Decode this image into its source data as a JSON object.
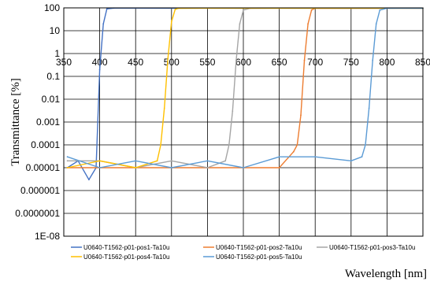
{
  "chart_data": {
    "type": "line",
    "title": "",
    "xlabel": "Wavelength [nm]",
    "ylabel": "Transmittance [%]",
    "xlim": [
      350,
      850
    ],
    "ylim": [
      1e-08,
      100
    ],
    "yscale": "log",
    "grid": true,
    "legend_position": "bottom",
    "x_ticks": [
      350,
      400,
      450,
      500,
      550,
      600,
      650,
      700,
      750,
      800,
      850
    ],
    "y_tick_labels": [
      "100",
      "10",
      "1",
      "0.1",
      "0.01",
      "0.001",
      "0.0001",
      "0.00001",
      "0.000001",
      "0.0000001",
      "1E-08"
    ],
    "series": [
      {
        "name": "U0640-T1562-p01-pos1-Ta10u",
        "color": "#4472c4",
        "x": [
          355,
          370,
          385,
          395,
          400,
          405,
          410,
          420,
          450,
          500,
          550,
          600,
          650,
          700,
          750,
          800,
          850
        ],
        "y": [
          1e-05,
          2e-05,
          3e-06,
          1e-05,
          0.2,
          20,
          90,
          98,
          98,
          97,
          98,
          97,
          98,
          98,
          97,
          98,
          97
        ]
      },
      {
        "name": "U0640-T1562-p01-pos2-Ta10u",
        "color": "#ed7d31",
        "x": [
          355,
          400,
          450,
          500,
          550,
          600,
          650,
          670,
          675,
          680,
          685,
          690,
          695,
          700,
          750,
          800,
          850
        ],
        "y": [
          1e-05,
          1e-05,
          1e-05,
          1e-05,
          1e-05,
          1e-05,
          1e-05,
          5e-05,
          0.0001,
          0.002,
          0.5,
          20,
          80,
          96,
          97,
          97,
          97
        ]
      },
      {
        "name": "U0640-T1562-p01-pos3-Ta10u",
        "color": "#a5a5a5",
        "x": [
          355,
          400,
          450,
          500,
          550,
          575,
          580,
          585,
          590,
          595,
          600,
          610,
          650,
          700,
          750,
          800,
          850
        ],
        "y": [
          2e-05,
          2e-05,
          1e-05,
          2e-05,
          1e-05,
          2e-05,
          0.0001,
          0.003,
          0.5,
          20,
          80,
          96,
          97,
          97,
          97,
          97,
          97
        ]
      },
      {
        "name": "U0640-T1562-p01-pos4-Ta10u",
        "color": "#ffc000",
        "x": [
          355,
          400,
          450,
          480,
          485,
          490,
          495,
          500,
          505,
          510,
          550,
          600,
          650,
          700,
          750,
          800,
          850
        ],
        "y": [
          1e-05,
          2e-05,
          1e-05,
          2e-05,
          0.0001,
          0.004,
          0.6,
          25,
          85,
          96,
          97,
          97,
          97,
          97,
          97,
          97,
          97
        ]
      },
      {
        "name": "U0640-T1562-p01-pos5-Ta10u",
        "color": "#5b9bd5",
        "x": [
          355,
          400,
          450,
          500,
          550,
          600,
          650,
          700,
          750,
          765,
          770,
          775,
          780,
          785,
          790,
          800,
          850
        ],
        "y": [
          3e-05,
          1e-05,
          2e-05,
          1e-05,
          2e-05,
          1e-05,
          3e-05,
          3e-05,
          2e-05,
          3e-05,
          0.0001,
          0.004,
          0.5,
          20,
          80,
          96,
          97
        ]
      }
    ]
  }
}
